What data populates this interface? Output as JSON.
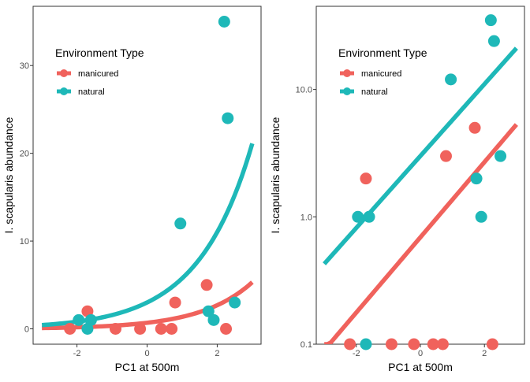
{
  "colors": {
    "manicured": "#F0625C",
    "natural": "#1EB8B8",
    "axis": "#333333",
    "tick": "#4d4d4d"
  },
  "chart_data": [
    {
      "type": "scatter",
      "title": "",
      "xlabel": "PC1 at 500m",
      "ylabel": "I. scapularis abundance",
      "x_ticks": [
        -2,
        0,
        2
      ],
      "x_tick_labels": [
        "-2",
        "0",
        "2"
      ],
      "y_ticks": [
        0,
        10,
        20,
        30
      ],
      "y_tick_labels": [
        "0",
        "10",
        "20",
        "30"
      ],
      "xlim": [
        -3.25,
        3.25
      ],
      "ylim": [
        -1.75,
        36.75
      ],
      "y_scale": "linear",
      "grid": false,
      "legend": {
        "title": "Environment Type",
        "position": "top-left",
        "entries": [
          "manicured",
          "natural"
        ]
      },
      "series": [
        {
          "name": "manicured",
          "points": [
            [
              -2.2,
              0
            ],
            [
              -1.7,
              2
            ],
            [
              -0.9,
              0
            ],
            [
              -0.2,
              0
            ],
            [
              0.4,
              0
            ],
            [
              0.7,
              0
            ],
            [
              0.8,
              3
            ],
            [
              1.7,
              5
            ],
            [
              2.25,
              0
            ]
          ],
          "fit": {
            "type": "exponential",
            "intercept": -0.37,
            "slope": 0.68,
            "x_range": [
              -3,
              3
            ]
          }
        },
        {
          "name": "natural",
          "points": [
            [
              -1.95,
              1
            ],
            [
              -1.7,
              0
            ],
            [
              -1.6,
              1
            ],
            [
              0.95,
              12
            ],
            [
              1.75,
              2
            ],
            [
              1.9,
              1
            ],
            [
              2.2,
              35
            ],
            [
              2.3,
              24
            ],
            [
              2.5,
              3
            ]
          ],
          "fit": {
            "type": "exponential",
            "intercept": 1.1,
            "slope": 0.65,
            "x_range": [
              -3,
              3
            ]
          }
        }
      ]
    },
    {
      "type": "scatter",
      "title": "",
      "xlabel": "PC1 at 500m",
      "ylabel": "I. scapularis abundance",
      "x_ticks": [
        -2,
        0,
        2
      ],
      "x_tick_labels": [
        "-2",
        "0",
        "2"
      ],
      "y_ticks": [
        0.1,
        1,
        10
      ],
      "y_tick_labels": [
        "0.1",
        "1.0",
        "10.0"
      ],
      "xlim": [
        -3.25,
        3.25
      ],
      "ylim": [
        0.1,
        45
      ],
      "y_scale": "log",
      "grid": false,
      "legend": {
        "title": "Environment Type",
        "position": "top-left",
        "entries": [
          "manicured",
          "natural"
        ]
      },
      "series": [
        {
          "name": "manicured",
          "points": [
            [
              -2.2,
              0.1
            ],
            [
              -1.7,
              2
            ],
            [
              -0.9,
              0.1
            ],
            [
              -0.2,
              0.1
            ],
            [
              0.4,
              0.1
            ],
            [
              0.7,
              0.1
            ],
            [
              0.8,
              3
            ],
            [
              1.7,
              5
            ],
            [
              2.25,
              0.1
            ]
          ],
          "fit": {
            "type": "exponential",
            "intercept": -0.37,
            "slope": 0.68,
            "x_range": [
              -3,
              3
            ]
          }
        },
        {
          "name": "natural",
          "points": [
            [
              -1.95,
              1
            ],
            [
              -1.7,
              0.1
            ],
            [
              -1.6,
              1
            ],
            [
              0.95,
              12
            ],
            [
              1.75,
              2
            ],
            [
              1.9,
              1
            ],
            [
              2.2,
              35
            ],
            [
              2.3,
              24
            ],
            [
              2.5,
              3
            ]
          ],
          "fit": {
            "type": "exponential",
            "intercept": 1.1,
            "slope": 0.65,
            "x_range": [
              -3,
              3
            ]
          }
        }
      ]
    }
  ]
}
